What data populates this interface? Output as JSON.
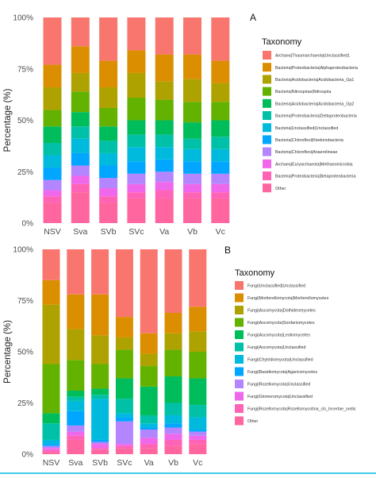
{
  "colors": {
    "palette11": [
      "#F8766D",
      "#DB8E00",
      "#AEA200",
      "#64B200",
      "#00BD5C",
      "#00C1A7",
      "#00BADE",
      "#00A6FF",
      "#B385FF",
      "#EF67EB",
      "#FF63B6"
    ],
    "footer_rule": "#00BCE4"
  },
  "chart_data": [
    {
      "type": "bar",
      "stacked": true,
      "panel_label": "A",
      "ylabel": "Percentage (%)",
      "ylim": [
        0,
        100
      ],
      "yticks": [
        "0%",
        "25%",
        "50%",
        "75%",
        "100%"
      ],
      "categories": [
        "NSV",
        "Sva",
        "SVb",
        "SVc",
        "Va",
        "Vb",
        "Vc"
      ],
      "legend_title": "Taxonomy",
      "legend_position": "right",
      "series": [
        {
          "name": "Archaea|Thaumarchaeota|Unclassified1",
          "values": [
            23,
            14,
            21,
            16,
            18,
            18,
            21
          ]
        },
        {
          "name": "Bacteria|Proteobacteria|Alphaproteobacteria",
          "values": [
            11,
            13,
            13,
            11,
            13,
            12,
            11
          ]
        },
        {
          "name": "Bacteria|Acidobacteria|Acidobacteria_Gp1",
          "values": [
            11,
            9,
            10,
            12,
            9,
            11,
            9
          ]
        },
        {
          "name": "Bacteria|Nitrospirae|Nitrospira",
          "values": [
            8,
            10,
            9,
            11,
            10,
            10,
            9
          ]
        },
        {
          "name": "Bacteria|Acidobacteria|Acidobacteria_Gp2",
          "values": [
            8,
            7,
            7,
            7,
            7,
            8,
            8
          ]
        },
        {
          "name": "Bacteria|Proteobacteria|Deltaproteobacteria",
          "values": [
            6,
            6,
            6,
            6,
            6,
            5,
            6
          ]
        },
        {
          "name": "Bacteria|Unclassified|Unclassified",
          "values": [
            6,
            7,
            6,
            7,
            6,
            6,
            6
          ]
        },
        {
          "name": "Bacteria|Chloroflexi|Ktedonobacteria",
          "values": [
            6,
            6,
            6,
            6,
            6,
            6,
            6
          ]
        },
        {
          "name": "Bacteria|Chloroflexi|Anaerolineae",
          "values": [
            5,
            5,
            5,
            5,
            5,
            5,
            5
          ]
        },
        {
          "name": "Archaea|Euryarchaeota|Methanomicrobia",
          "values": [
            3,
            4,
            4,
            4,
            4,
            4,
            4
          ]
        },
        {
          "name": "Bacteria|Proteobacteria|Betaproteobacteria",
          "values": [
            3,
            4,
            3,
            3,
            4,
            3,
            3
          ]
        },
        {
          "name": "Other",
          "values": [
            10,
            15,
            10,
            12,
            12,
            12,
            12
          ]
        }
      ]
    },
    {
      "type": "bar",
      "stacked": true,
      "panel_label": "B",
      "ylabel": "Percentage (%)",
      "ylim": [
        0,
        100
      ],
      "yticks": [
        "0%",
        "25%",
        "50%",
        "75%",
        "100%"
      ],
      "categories": [
        "NSV",
        "Sva",
        "SVb",
        "SVc",
        "Va",
        "Vb",
        "Vc"
      ],
      "legend_title": "Taxonomy",
      "legend_position": "right",
      "series": [
        {
          "name": "Fungi|Unclassified|Unclassified",
          "values": [
            15,
            22,
            22,
            33,
            41,
            31,
            28
          ]
        },
        {
          "name": "Fungi|Mortierellomycota|Mortierellomycetes",
          "values": [
            12,
            17,
            20,
            10,
            10,
            10,
            12
          ]
        },
        {
          "name": "Fungi|Ascomycota|Dothideomycetes",
          "values": [
            29,
            15,
            14,
            6,
            6,
            8,
            10
          ]
        },
        {
          "name": "Fungi|Ascomycota|Sordariomycetes",
          "values": [
            24,
            15,
            12,
            14,
            10,
            13,
            13
          ]
        },
        {
          "name": "Fungi|Ascomycota|Leotiomycetes",
          "values": [
            5,
            3,
            3,
            10,
            14,
            13,
            13
          ]
        },
        {
          "name": "Fungi|Ascomycota|Unclassified",
          "values": [
            8,
            2,
            2,
            7,
            4,
            6,
            6
          ]
        },
        {
          "name": "Fungi|Chytridiomycota|Unclassified",
          "values": [
            2,
            5,
            20,
            2,
            2,
            4,
            6
          ]
        },
        {
          "name": "Fungi|Basidiomycota|Agaricomycetes",
          "values": [
            1,
            7,
            1,
            2,
            1,
            2,
            1
          ]
        },
        {
          "name": "Fungi|Rozellomycota|Unclassified",
          "values": [
            1,
            3,
            1,
            11,
            4,
            3,
            2
          ]
        },
        {
          "name": "Fungi|Glomeromycota|Unclassified",
          "values": [
            1,
            2,
            2,
            1,
            3,
            3,
            2
          ]
        },
        {
          "name": "Fungi|Rozellomycota|Rozellomycotina_cls_Incertae_sedis",
          "values": [
            1,
            2,
            1,
            1,
            2,
            3,
            2
          ]
        },
        {
          "name": "Other",
          "values": [
            1,
            7,
            2,
            3,
            3,
            4,
            5
          ]
        }
      ]
    }
  ]
}
